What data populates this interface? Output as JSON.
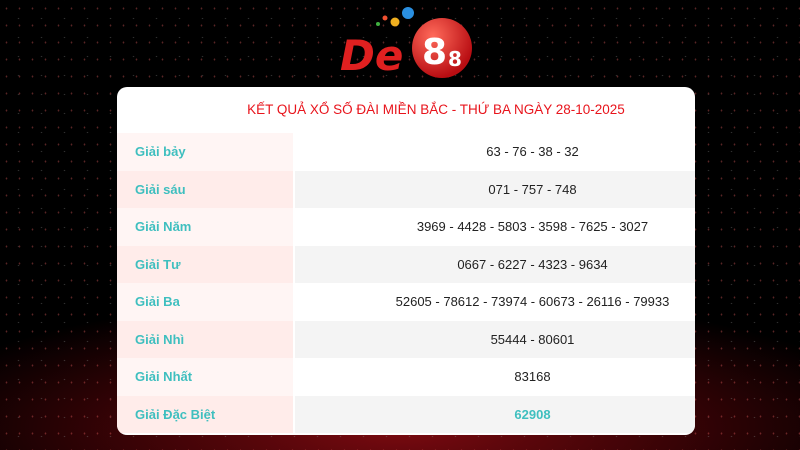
{
  "logo": {
    "text": "De88",
    "colors": {
      "brand": "#e02020"
    }
  },
  "title": "KẾT QUẢ XỔ SỐ ĐÀI MIỀN BẮC - THỨ BA NGÀY 28-10-2025",
  "colors": {
    "title": "#e8141c",
    "label": "#3fbfbf",
    "special": "#3fbfbf"
  },
  "rows": [
    {
      "label": "Giải bảy",
      "value": "63 - 76 - 38 - 32"
    },
    {
      "label": "Giải sáu",
      "value": "071 - 757 - 748"
    },
    {
      "label": "Giải Năm",
      "value": "3969 - 4428 - 5803 - 3598 - 7625 - 3027"
    },
    {
      "label": "Giải Tư",
      "value": "0667 - 6227 - 4323 - 9634"
    },
    {
      "label": "Giải Ba",
      "value": "52605 - 78612 - 73974 - 60673 - 26116 - 79933"
    },
    {
      "label": "Giải Nhì",
      "value": "55444 - 80601"
    },
    {
      "label": "Giải Nhất",
      "value": "83168"
    },
    {
      "label": "Giải Đặc Biệt",
      "value": "62908"
    }
  ]
}
